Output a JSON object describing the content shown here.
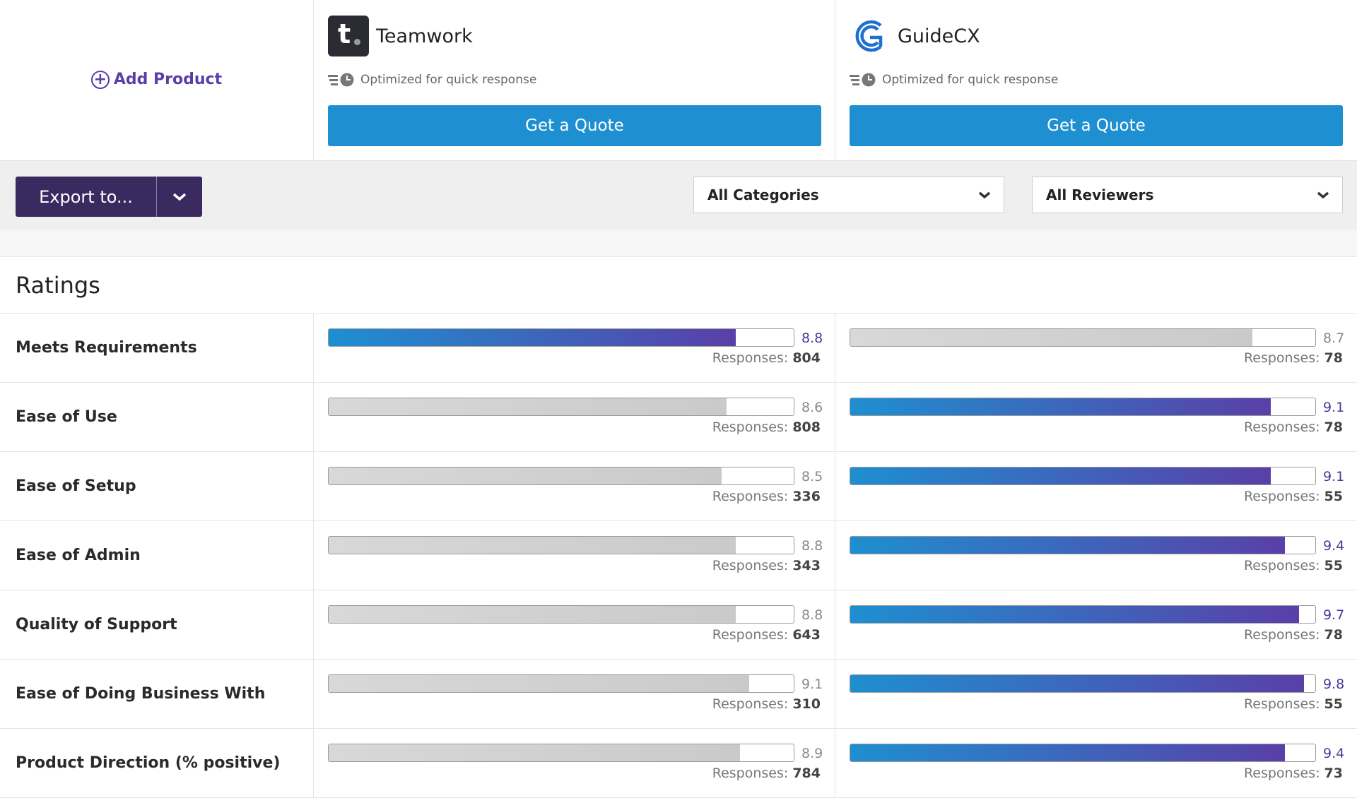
{
  "add_product": {
    "label": "Add Product"
  },
  "products": [
    {
      "name": "Teamwork",
      "badge": "Optimized for quick response",
      "quote_label": "Get a Quote",
      "logo": "teamwork-logo"
    },
    {
      "name": "GuideCX",
      "badge": "Optimized for quick response",
      "quote_label": "Get a Quote",
      "logo": "guidecx-logo"
    }
  ],
  "toolbar": {
    "export_label": "Export to...",
    "categories_value": "All Categories",
    "reviewers_value": "All Reviewers"
  },
  "ratings": {
    "title": "Ratings",
    "responses_label": "Responses:",
    "rows": [
      {
        "label": "Meets Requirements",
        "p1": {
          "score": 8.8,
          "responses": "804",
          "winner": true
        },
        "p2": {
          "score": 8.7,
          "responses": "78",
          "winner": false
        }
      },
      {
        "label": "Ease of Use",
        "p1": {
          "score": 8.6,
          "responses": "808",
          "winner": false
        },
        "p2": {
          "score": 9.1,
          "responses": "78",
          "winner": true
        }
      },
      {
        "label": "Ease of Setup",
        "p1": {
          "score": 8.5,
          "responses": "336",
          "winner": false
        },
        "p2": {
          "score": 9.1,
          "responses": "55",
          "winner": true
        }
      },
      {
        "label": "Ease of Admin",
        "p1": {
          "score": 8.8,
          "responses": "343",
          "winner": false
        },
        "p2": {
          "score": 9.4,
          "responses": "55",
          "winner": true
        }
      },
      {
        "label": "Quality of Support",
        "p1": {
          "score": 8.8,
          "responses": "643",
          "winner": false
        },
        "p2": {
          "score": 9.7,
          "responses": "78",
          "winner": true
        }
      },
      {
        "label": "Ease of Doing Business With",
        "p1": {
          "score": 9.1,
          "responses": "310",
          "winner": false
        },
        "p2": {
          "score": 9.8,
          "responses": "55",
          "winner": true
        }
      },
      {
        "label": "Product Direction (% positive)",
        "p1": {
          "score": 8.9,
          "responses": "784",
          "winner": false
        },
        "p2": {
          "score": 9.4,
          "responses": "73",
          "winner": true
        }
      }
    ]
  },
  "colors": {
    "accent_blue": "#1e8fd0",
    "accent_purple": "#5a3fa8",
    "export_bg": "#3a2a60"
  }
}
